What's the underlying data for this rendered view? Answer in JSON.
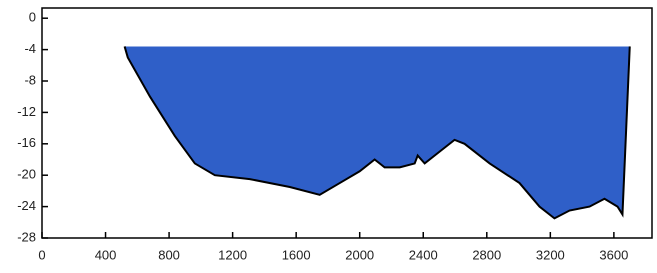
{
  "chart_data": {
    "type": "area",
    "x": [
      520,
      540,
      680,
      836,
      962,
      1088,
      1308,
      1560,
      1748,
      1874,
      2000,
      2094,
      2157,
      2252,
      2346,
      2365,
      2409,
      2503,
      2597,
      2660,
      2818,
      3006,
      3132,
      3226,
      3321,
      3447,
      3541,
      3623,
      3654,
      3700
    ],
    "series": [
      {
        "color": "#2f5fc8",
        "values": [
          -3.6,
          -3.6,
          -3.6,
          -3.6,
          -3.6,
          -3.6,
          -3.6,
          -3.6,
          -3.6,
          -3.6,
          -3.6,
          -3.6,
          -3.6,
          -3.6,
          -3.6,
          -3.6,
          -3.6,
          -3.6,
          -3.6,
          -3.6,
          -3.6,
          -3.6,
          -3.6,
          -3.6,
          -3.6,
          -3.6,
          -3.6,
          -3.6,
          -3.6,
          -3.6
        ]
      },
      {
        "color": "#000000",
        "values": [
          -3.6,
          -5,
          -10,
          -15,
          -18.5,
          -20,
          -20.5,
          -21.5,
          -22.5,
          -21,
          -19.5,
          -18,
          -19,
          -19,
          -18.5,
          -17.5,
          -18.5,
          -17,
          -15.5,
          -16,
          -18.5,
          -21,
          -24,
          -25.5,
          -24.5,
          -24,
          -23,
          -24,
          -25,
          -3.6
        ]
      }
    ],
    "xlim": [
      0,
      3840
    ],
    "xticks": [
      0,
      400,
      800,
      1200,
      1600,
      2000,
      2400,
      2800,
      3200,
      3600
    ],
    "ylim": [
      -28,
      1.3
    ],
    "yticks": [
      0,
      -4,
      -8,
      -12,
      -16,
      -20,
      -24,
      -28
    ]
  }
}
